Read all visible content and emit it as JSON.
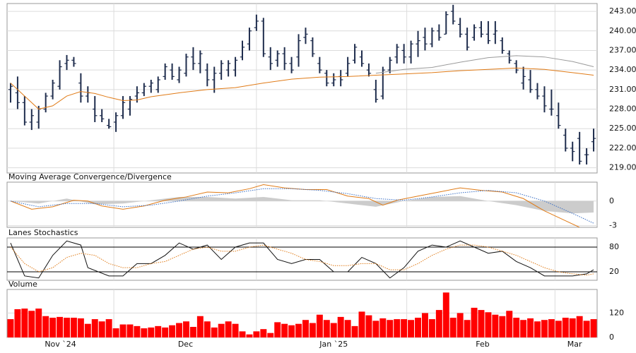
{
  "time_axis": {
    "xlim": [
      -0.5,
      83.5
    ],
    "xticks": [
      {
        "value": 7.1,
        "label": "Nov `24"
      },
      {
        "value": 24.9,
        "label": "Dec"
      },
      {
        "value": 46,
        "label": "Jan `25"
      },
      {
        "value": 67.2,
        "label": "Feb"
      },
      {
        "value": 80.3,
        "label": "Mar"
      }
    ],
    "grid": [
      14.7,
      35,
      56.4,
      77.5
    ]
  },
  "chart_data": [
    {
      "type": "ohlc",
      "color": "#1f2d4d",
      "grid": true,
      "grid_color": "#dcdcdc",
      "ylim": [
        218.2,
        244.2
      ],
      "yticks": [
        {
          "value": 219,
          "label": "219.00"
        },
        {
          "value": 222,
          "label": "222.00"
        },
        {
          "value": 225,
          "label": "225.00"
        },
        {
          "value": 228,
          "label": "228.00"
        },
        {
          "value": 231,
          "label": "231.00"
        },
        {
          "value": 234,
          "label": "234.00"
        },
        {
          "value": 237,
          "label": "237.00"
        },
        {
          "value": 240,
          "label": "240.00"
        },
        {
          "value": 243,
          "label": "243.00"
        }
      ],
      "open": [
        231,
        230.5,
        229,
        226,
        226,
        228,
        230,
        231.5,
        235,
        235.5,
        232,
        230,
        228,
        227,
        225.5,
        226,
        227,
        228,
        230,
        230.5,
        231.5,
        231,
        233,
        234,
        232.5,
        233.5,
        236,
        235,
        234,
        232.5,
        233.5,
        234,
        234,
        236,
        238,
        240.5,
        241.5,
        236,
        235.5,
        236.5,
        235,
        236,
        239,
        238.5,
        235,
        233.5,
        232,
        233,
        233.5,
        235.5,
        236,
        234,
        231,
        230,
        234,
        236,
        237,
        236,
        238,
        239,
        238,
        240,
        239.5,
        243,
        241,
        239.5,
        239,
        240.5,
        239.5,
        239.5,
        238.5,
        236.5,
        235,
        232,
        232.5,
        231,
        230,
        228,
        227,
        224,
        222,
        223.5,
        221,
        223
      ],
      "high": [
        232,
        233,
        230,
        228,
        228.5,
        230.5,
        232.5,
        235.5,
        236.3,
        236,
        233.5,
        231.5,
        230,
        228,
        226.5,
        227.5,
        230,
        230,
        231.5,
        232,
        232.5,
        233,
        235,
        235,
        234.5,
        236.5,
        237.5,
        237,
        235,
        234.5,
        235.5,
        235.5,
        236,
        238.5,
        240.5,
        242.5,
        242,
        237.5,
        237,
        237.5,
        236,
        239.5,
        240.5,
        239,
        236,
        234,
        233.5,
        234,
        236,
        238,
        237,
        235,
        232.5,
        234.5,
        236,
        238,
        238,
        238.5,
        240,
        240.5,
        240.5,
        241,
        243,
        244,
        242,
        240.5,
        241,
        241.5,
        241.5,
        241.5,
        239,
        237,
        235.5,
        234.5,
        234,
        232,
        231.5,
        231,
        229,
        225,
        223,
        224.5,
        222,
        225
      ],
      "low": [
        229,
        228,
        225.5,
        224.8,
        225,
        227.5,
        229.5,
        231,
        234,
        234.5,
        229,
        229,
        226,
        226,
        225,
        224.5,
        226.5,
        227,
        229,
        230,
        230.5,
        230.5,
        232.5,
        232.5,
        232,
        233,
        234,
        233.5,
        231.5,
        230.5,
        232.5,
        233,
        233,
        235.5,
        237,
        240,
        236,
        234,
        234.5,
        234,
        233.5,
        234.5,
        238,
        236,
        233.5,
        231.5,
        231.5,
        231.5,
        233,
        235,
        234.5,
        233,
        229,
        229.5,
        233.5,
        235,
        235,
        235,
        236,
        237,
        237.5,
        238.5,
        239.5,
        241,
        239,
        237,
        238.5,
        239,
        238,
        238,
        236.5,
        235,
        233.5,
        231,
        230.5,
        229.5,
        227.5,
        227,
        225,
        221.5,
        220,
        219.5,
        219.5,
        221.5
      ],
      "close": [
        231.5,
        229,
        226,
        227,
        228,
        230,
        232,
        234.5,
        235.5,
        235,
        230,
        230.5,
        227,
        226.5,
        225.3,
        227,
        229,
        229.5,
        230.5,
        231.5,
        232,
        232.5,
        234.5,
        233,
        234,
        236,
        235,
        236.5,
        232.5,
        233.5,
        235,
        235,
        235.5,
        237.5,
        240,
        241.5,
        236.5,
        235,
        236.5,
        235,
        234,
        238.5,
        239.5,
        236.5,
        234,
        232,
        232.5,
        232.5,
        235,
        237.5,
        235,
        233.5,
        229.5,
        234,
        235.5,
        237.5,
        236,
        238,
        238.5,
        238,
        240,
        239,
        242.5,
        241.5,
        239.5,
        237.5,
        240.5,
        239.5,
        238.5,
        240,
        237,
        235.5,
        234,
        233,
        231,
        230,
        228.5,
        228,
        225.5,
        222,
        221.5,
        220,
        221,
        223.5
      ],
      "series": [
        {
          "color": "#e07b17",
          "x": [
            0,
            2,
            4,
            6,
            8,
            10,
            12,
            14,
            16,
            18,
            20,
            24,
            28,
            32,
            36,
            40,
            44,
            48,
            52,
            56,
            60,
            64,
            68,
            72,
            76,
            80,
            83
          ],
          "values": [
            232,
            230,
            228,
            228.5,
            230,
            230.7,
            230.4,
            229.8,
            229.3,
            229.4,
            229.9,
            230.5,
            231,
            231.3,
            232,
            232.6,
            232.9,
            233,
            233.2,
            233.4,
            233.6,
            233.9,
            234.1,
            234.3,
            234.1,
            233.6,
            233.2
          ]
        },
        {
          "color": "#9a9a9a",
          "x": [
            52,
            56,
            60,
            64,
            68,
            72,
            76,
            80,
            83
          ],
          "values": [
            233.5,
            234.1,
            234.4,
            235.2,
            235.9,
            236.2,
            236,
            235.3,
            234.5
          ]
        }
      ]
    },
    {
      "type": "line",
      "title": "Moving Average Convergence/Divergence",
      "grid": true,
      "grid_color": "#dcdcdc",
      "ylim": [
        -3.2,
        2.3
      ],
      "yticks": [
        0,
        -3
      ],
      "histogram": {
        "color": "#cccccc",
        "x": [
          0,
          4,
          8,
          12,
          16,
          20,
          24,
          28,
          32,
          36,
          40,
          44,
          48,
          52,
          56,
          60,
          64,
          68,
          72,
          76,
          80,
          83
        ],
        "values": [
          0,
          -0.3,
          0.3,
          -0.4,
          -0.3,
          0.1,
          0.5,
          0.5,
          0.3,
          0.5,
          0.1,
          0.1,
          -0.3,
          -0.7,
          0,
          0.5,
          0.6,
          0,
          -0.5,
          -1.2,
          -1.5,
          -1.4
        ]
      },
      "series": [
        {
          "color": "#e07b17",
          "x": [
            0,
            3,
            6,
            9,
            11,
            13,
            16,
            19,
            22,
            25,
            28,
            31,
            34,
            36,
            39,
            42,
            45,
            48,
            51,
            53,
            55,
            58,
            61,
            64,
            67,
            70,
            73,
            76,
            79,
            81
          ],
          "values": [
            0,
            -1,
            -0.7,
            0.1,
            0,
            -0.6,
            -1,
            -0.6,
            0.1,
            0.5,
            1.1,
            1,
            1.5,
            2,
            1.6,
            1.4,
            1.4,
            0.6,
            0.3,
            -0.5,
            0.1,
            0.6,
            1.1,
            1.6,
            1.3,
            1.1,
            0.3,
            -1.2,
            -2.4,
            -3.2
          ]
        },
        {
          "color": "#3a6fc4",
          "dash": true,
          "x": [
            0,
            4,
            8,
            12,
            16,
            20,
            24,
            28,
            32,
            36,
            40,
            44,
            48,
            52,
            56,
            60,
            64,
            68,
            72,
            76,
            80,
            83
          ],
          "values": [
            0,
            -0.7,
            -0.3,
            -0.3,
            -0.7,
            -0.5,
            0,
            0.6,
            1,
            1.5,
            1.5,
            1.3,
            0.9,
            0.3,
            0.1,
            0.5,
            1,
            1.3,
            1,
            0,
            -1.5,
            -2.7
          ]
        }
      ]
    },
    {
      "type": "line",
      "title": "Lanes Stochastics",
      "grid": true,
      "grid_color": "#000000",
      "ylim": [
        -0.6,
        102.3
      ],
      "yticks": [
        80,
        20
      ],
      "series": [
        {
          "color": "#111111",
          "x": [
            0,
            2,
            4,
            6,
            8,
            10,
            11,
            14,
            16,
            18,
            20,
            22,
            24,
            26,
            28,
            30,
            32,
            34,
            36,
            38,
            40,
            42,
            44,
            46,
            48,
            50,
            52,
            54,
            56,
            58,
            60,
            62,
            64,
            66,
            68,
            70,
            72,
            74,
            76,
            78,
            80,
            82,
            83
          ],
          "values": [
            90,
            10,
            5,
            60,
            95,
            85,
            30,
            10,
            10,
            40,
            40,
            60,
            90,
            75,
            85,
            50,
            80,
            90,
            90,
            50,
            40,
            50,
            50,
            20,
            20,
            55,
            40,
            5,
            30,
            70,
            85,
            80,
            95,
            80,
            65,
            70,
            45,
            30,
            10,
            10,
            10,
            15,
            25
          ]
        },
        {
          "color": "#e07b17",
          "dash": true,
          "x": [
            0,
            2,
            4,
            6,
            8,
            10,
            12,
            14,
            16,
            18,
            20,
            22,
            24,
            26,
            28,
            30,
            32,
            34,
            36,
            38,
            40,
            42,
            44,
            46,
            48,
            50,
            52,
            54,
            56,
            58,
            60,
            62,
            64,
            66,
            68,
            70,
            72,
            74,
            76,
            78,
            80,
            82,
            83
          ],
          "values": [
            80,
            40,
            20,
            30,
            55,
            65,
            60,
            40,
            30,
            30,
            40,
            45,
            60,
            75,
            80,
            70,
            70,
            80,
            85,
            75,
            65,
            50,
            45,
            35,
            35,
            40,
            40,
            25,
            25,
            40,
            60,
            75,
            85,
            85,
            80,
            70,
            60,
            45,
            30,
            20,
            15,
            12,
            15
          ]
        }
      ]
    },
    {
      "type": "bar",
      "title": "Volume",
      "color": "#ff0000",
      "grid": true,
      "grid_color": "#dcdcdc",
      "ylim": [
        0,
        236
      ],
      "yticks": [
        120,
        0
      ],
      "values": [
        90,
        139,
        142,
        131,
        142,
        105,
        97,
        101,
        97,
        97,
        94,
        67,
        90,
        79,
        90,
        45,
        64,
        64,
        56,
        45,
        49,
        56,
        49,
        60,
        71,
        79,
        52,
        105,
        79,
        49,
        67,
        79,
        67,
        30,
        15,
        30,
        41,
        22,
        75,
        67,
        60,
        67,
        86,
        71,
        112,
        86,
        71,
        101,
        86,
        56,
        127,
        109,
        82,
        94,
        86,
        90,
        90,
        86,
        97,
        120,
        90,
        135,
        221,
        97,
        120,
        86,
        146,
        135,
        124,
        112,
        105,
        131,
        97,
        86,
        94,
        79,
        86,
        90,
        82,
        97,
        94,
        105,
        82,
        90
      ]
    }
  ]
}
